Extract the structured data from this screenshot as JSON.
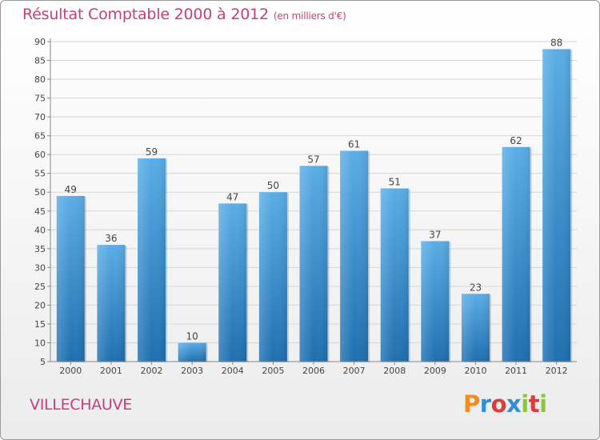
{
  "header": {
    "title": "Résultat Comptable 2000 à 2012",
    "subtitle": "(en milliers d'€)"
  },
  "footer": {
    "commune": "VILLECHAUVE",
    "logo": "Proxiti"
  },
  "colors": {
    "accent_text": "#c5407a",
    "bar_top": "#5aade6",
    "bar_bottom": "#1f6fb0"
  },
  "chart_data": {
    "type": "bar",
    "title": "Résultat Comptable 2000 à 2012",
    "subtitle": "(en milliers d'€)",
    "xlabel": "",
    "ylabel": "",
    "categories": [
      "2000",
      "2001",
      "2002",
      "2003",
      "2004",
      "2005",
      "2006",
      "2007",
      "2008",
      "2009",
      "2010",
      "2011",
      "2012"
    ],
    "values": [
      49,
      36,
      59,
      10,
      47,
      50,
      57,
      61,
      51,
      37,
      23,
      62,
      88
    ],
    "ylim": [
      5,
      90
    ],
    "yticks": [
      5,
      10,
      15,
      20,
      25,
      30,
      35,
      40,
      45,
      50,
      55,
      60,
      65,
      70,
      75,
      80,
      85,
      90
    ],
    "grid": true
  }
}
